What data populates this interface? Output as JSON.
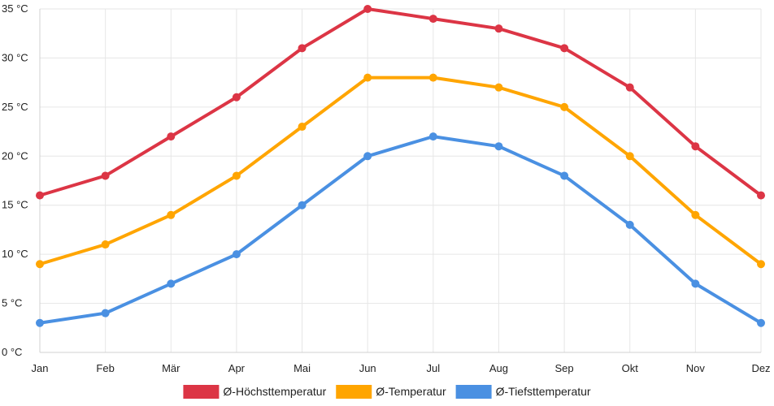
{
  "chart_data": {
    "type": "line",
    "categories": [
      "Jan",
      "Feb",
      "Mär",
      "Apr",
      "Mai",
      "Jun",
      "Jul",
      "Aug",
      "Sep",
      "Okt",
      "Nov",
      "Dez"
    ],
    "ylim": [
      0,
      35
    ],
    "y_ticks": [
      0,
      5,
      10,
      15,
      20,
      25,
      30,
      35
    ],
    "y_unit": "°C",
    "grid": true,
    "legend_position": "bottom",
    "series": [
      {
        "name": "Ø-Höchsttemperatur",
        "color": "#dc3545",
        "values": [
          16,
          18,
          22,
          26,
          31,
          35,
          34,
          33,
          31,
          27,
          21,
          16
        ]
      },
      {
        "name": "Ø-Temperatur",
        "color": "#ffa500",
        "values": [
          9,
          11,
          14,
          18,
          23,
          28,
          28,
          27,
          25,
          20,
          14,
          9
        ]
      },
      {
        "name": "Ø-Tiefsttemperatur",
        "color": "#4a90e2",
        "values": [
          3,
          4,
          7,
          10,
          15,
          20,
          22,
          21,
          18,
          13,
          7,
          3
        ]
      }
    ]
  }
}
